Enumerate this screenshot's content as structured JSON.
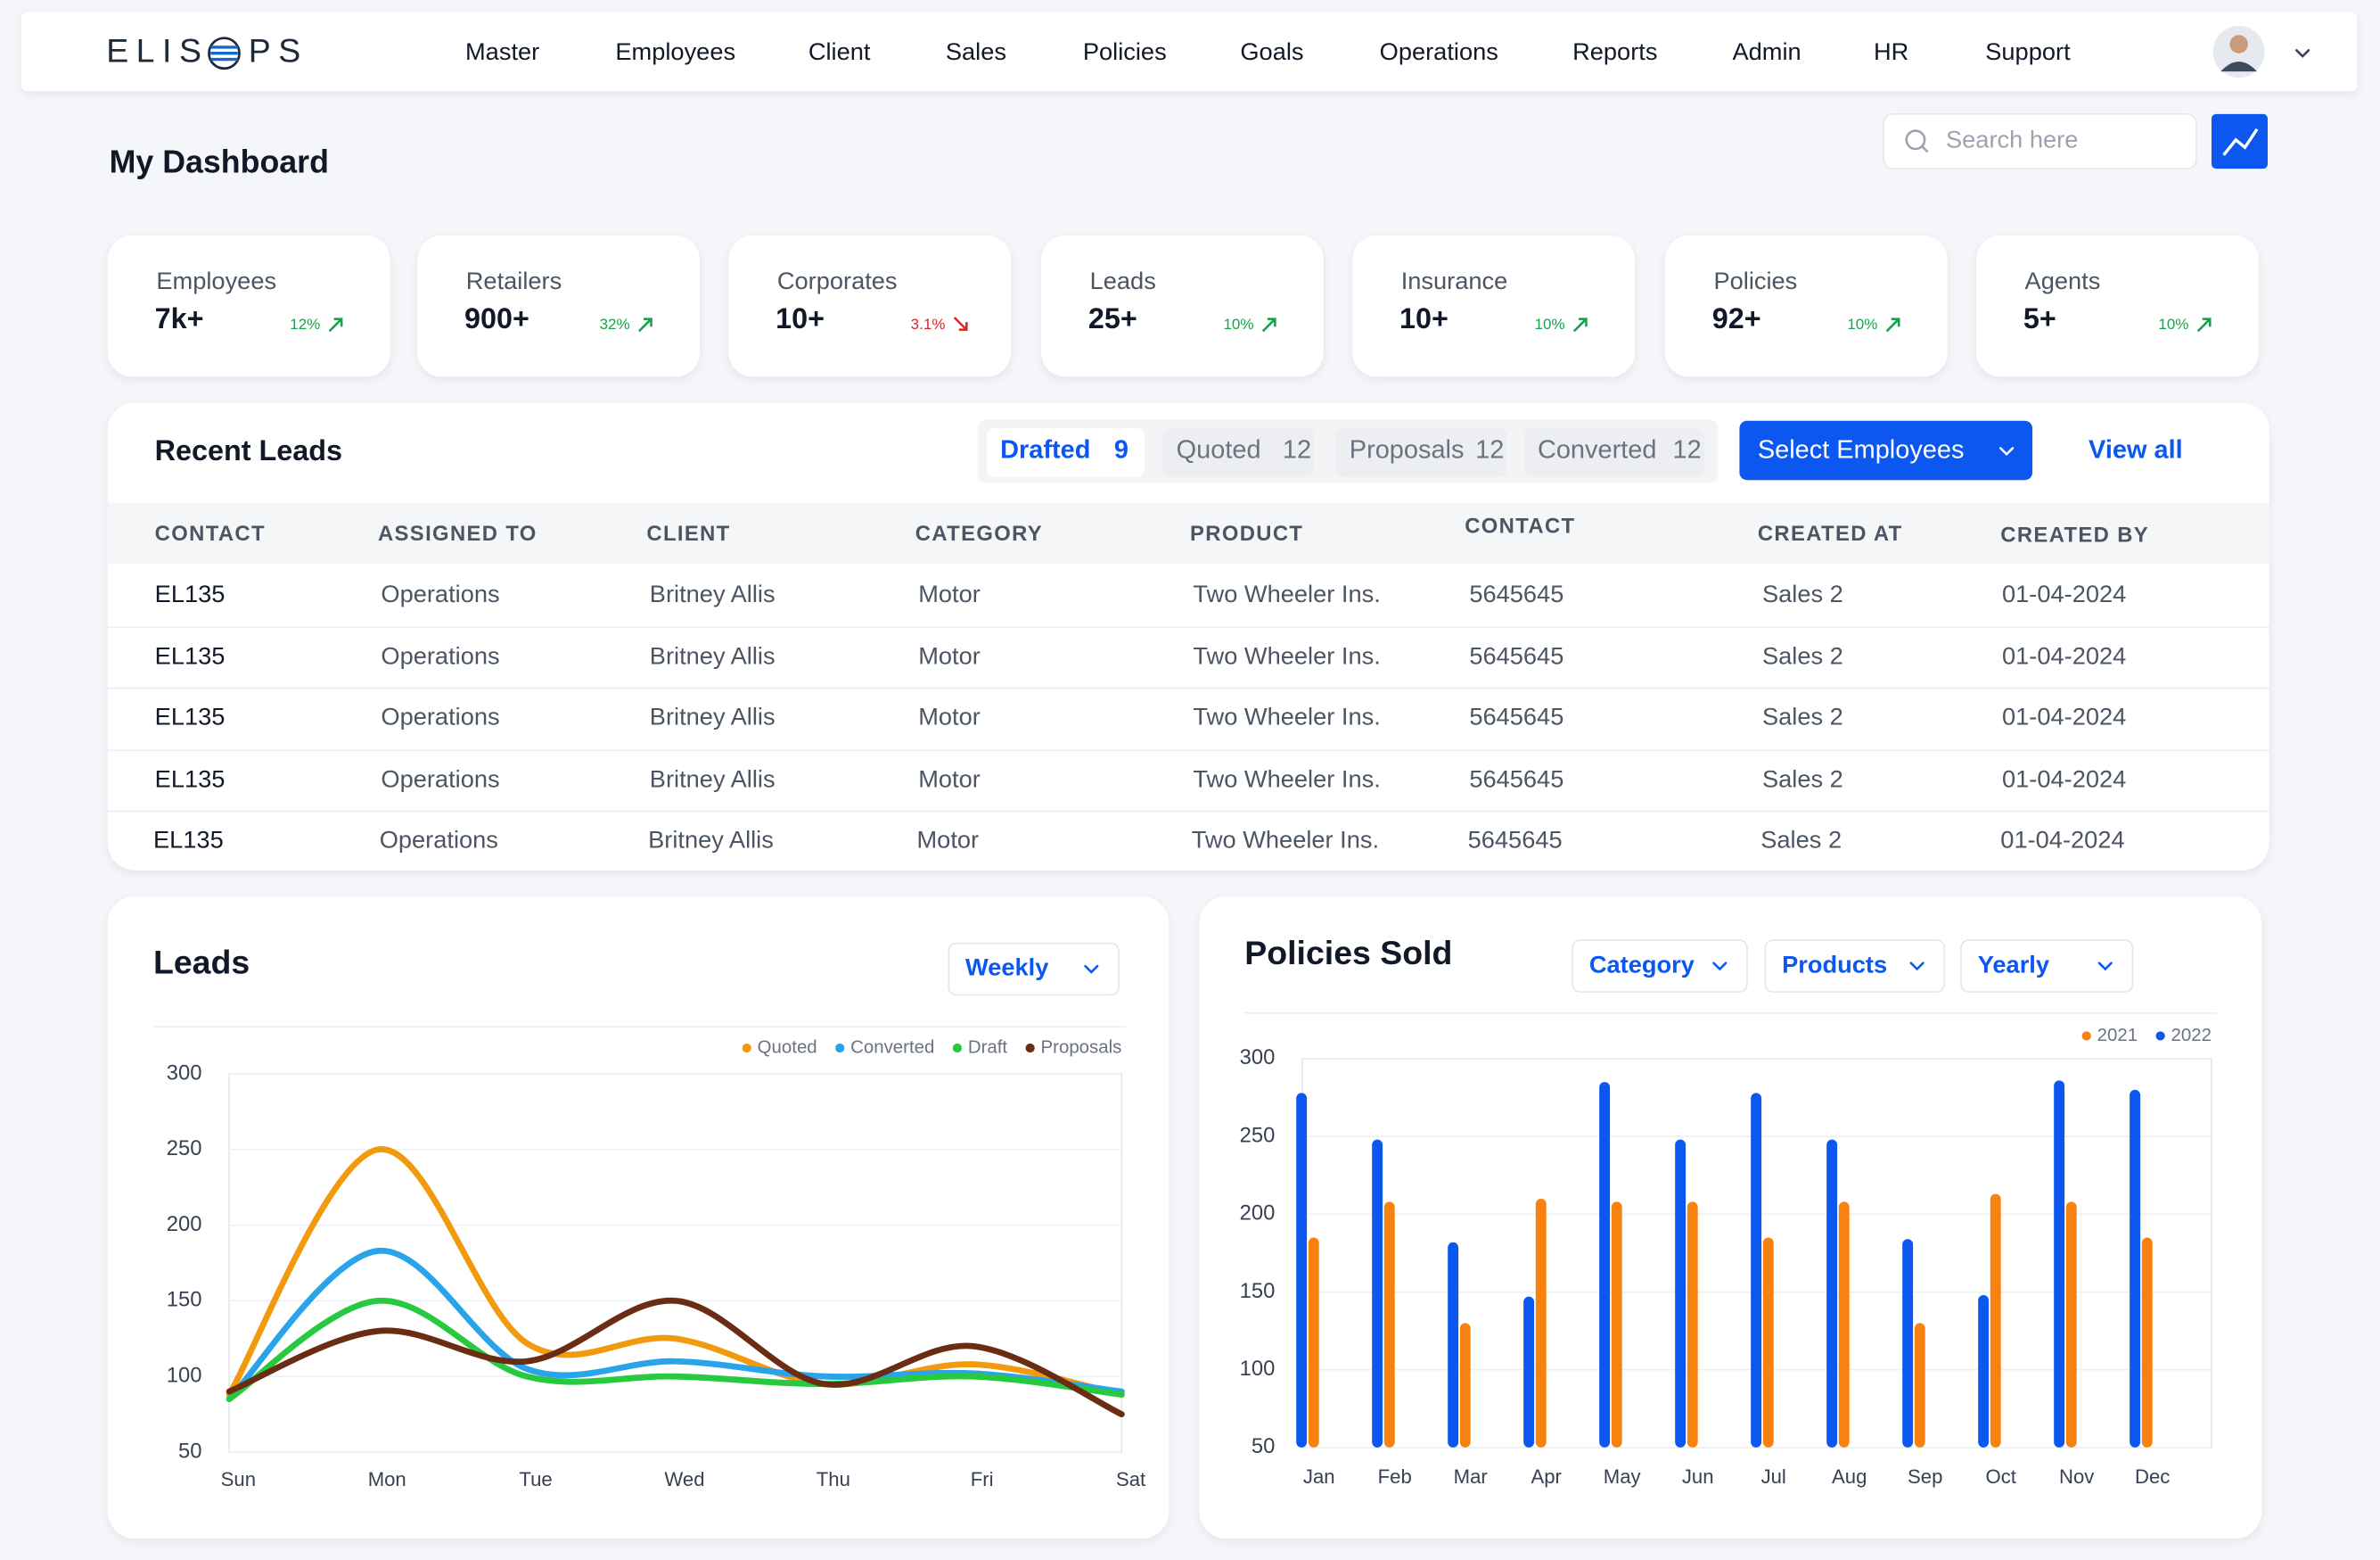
{
  "nav": {
    "logo_left": "ELIS",
    "logo_right": "PS",
    "menu": [
      "Master",
      "Employees",
      "Client",
      "Sales",
      "Policies",
      "Goals",
      "Operations",
      "Reports",
      "Admin",
      "HR",
      "Support"
    ]
  },
  "page_title": "My Dashboard",
  "search_placeholder": "Search here",
  "stats": [
    {
      "label": "Employees",
      "value": "7k+",
      "change": "12%",
      "trend": "up"
    },
    {
      "label": "Retailers",
      "value": "900+",
      "change": "32%",
      "trend": "up"
    },
    {
      "label": "Corporates",
      "value": "10+",
      "change": "3.1%",
      "trend": "down"
    },
    {
      "label": "Leads",
      "value": "25+",
      "change": "10%",
      "trend": "up"
    },
    {
      "label": "Insurance",
      "value": "10+",
      "change": "10%",
      "trend": "up"
    },
    {
      "label": "Policies",
      "value": "92+",
      "change": "10%",
      "trend": "up"
    },
    {
      "label": "Agents",
      "value": "5+",
      "change": "10%",
      "trend": "up"
    }
  ],
  "recent_leads": {
    "title": "Recent Leads",
    "tabs": [
      {
        "label": "Drafted",
        "count": 9,
        "active": true
      },
      {
        "label": "Quoted",
        "count": 12,
        "active": false
      },
      {
        "label": "Proposals",
        "count": 12,
        "active": false
      },
      {
        "label": "Converted",
        "count": 12,
        "active": false
      }
    ],
    "button": "Select Employees",
    "link": "View all",
    "columns": [
      "CONTACT",
      "ASSIGNED TO",
      "CLIENT",
      "CATEGORY",
      "PRODUCT",
      "CONTACT",
      "CREATED AT",
      "CREATED BY"
    ],
    "rows": [
      [
        "EL135",
        "Operations",
        "Britney Allis",
        "Motor",
        "Two Wheeler Ins.",
        "5645645",
        "Sales 2",
        "01-04-2024"
      ],
      [
        "EL135",
        "Operations",
        "Britney Allis",
        "Motor",
        "Two Wheeler Ins.",
        "5645645",
        "Sales 2",
        "01-04-2024"
      ],
      [
        "EL135",
        "Operations",
        "Britney Allis",
        "Motor",
        "Two Wheeler Ins.",
        "5645645",
        "Sales 2",
        "01-04-2024"
      ],
      [
        "EL135",
        "Operations",
        "Britney Allis",
        "Motor",
        "Two Wheeler Ins.",
        "5645645",
        "Sales 2",
        "01-04-2024"
      ],
      [
        "EL135",
        "Operations",
        "Britney Allis",
        "Motor",
        "Two Wheeler Ins.",
        "5645645",
        "Sales 2",
        "01-04-2024"
      ]
    ]
  },
  "chart_data": [
    {
      "type": "line",
      "title": "Leads",
      "filters": [
        "Weekly"
      ],
      "categories": [
        "Sun",
        "Mon",
        "Tue",
        "Wed",
        "Thu",
        "Fri",
        "Sat"
      ],
      "series": [
        {
          "name": "Quoted",
          "color": "#f29a0e",
          "values": [
            88,
            250,
            122,
            125,
            95,
            108,
            88
          ]
        },
        {
          "name": "Converted",
          "color": "#29a3ea",
          "values": [
            85,
            183,
            105,
            110,
            100,
            102,
            90
          ]
        },
        {
          "name": "Draft",
          "color": "#27c93f",
          "values": [
            85,
            150,
            100,
            100,
            95,
            100,
            88
          ]
        },
        {
          "name": "Proposals",
          "color": "#6b2c14",
          "values": [
            90,
            130,
            110,
            150,
            95,
            120,
            75
          ]
        }
      ],
      "ylim": [
        50,
        300
      ],
      "yticks": [
        50,
        100,
        150,
        200,
        250,
        300
      ],
      "grid": true,
      "legend": "top-right"
    },
    {
      "type": "bar",
      "title": "Policies Sold",
      "filters": [
        "Category",
        "Products",
        "Yearly"
      ],
      "categories": [
        "Jan",
        "Feb",
        "Mar",
        "Apr",
        "May",
        "Jun",
        "Jul",
        "Aug",
        "Sep",
        "Oct",
        "Nov",
        "Dec"
      ],
      "series": [
        {
          "name": "2021",
          "color": "#f7820f",
          "values": [
            185,
            208,
            130,
            210,
            208,
            208,
            185,
            208,
            130,
            213,
            208,
            185
          ]
        },
        {
          "name": "2022",
          "color": "#0b57f0",
          "values": [
            278,
            248,
            182,
            147,
            285,
            248,
            278,
            248,
            184,
            148,
            286,
            280
          ]
        }
      ],
      "ylim": [
        50,
        300
      ],
      "yticks": [
        50,
        100,
        150,
        200,
        250,
        300
      ],
      "grid": true,
      "legend": "top-right"
    }
  ]
}
